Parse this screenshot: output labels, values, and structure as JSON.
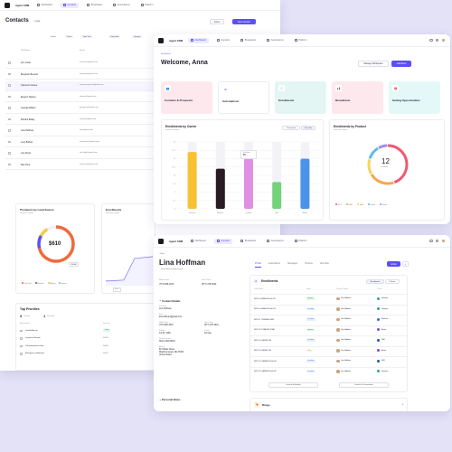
{
  "contacts_window": {
    "brand": "Agent CRM",
    "nav": [
      "Dashboard",
      "Contacts",
      "Broadcasts",
      "Automations",
      "Platform"
    ],
    "title": "Contacts",
    "count": "2,184",
    "action_button": "Action",
    "new_button": "New Contact",
    "filters": [
      "Status",
      "Texas",
      "New York",
      "Contacted",
      "Georgia",
      "Active"
    ],
    "columns": [
      "Full Name",
      "Email"
    ],
    "rows": [
      {
        "name": "Ann Lazar",
        "email": "ann.lazar@gmail.com"
      },
      {
        "name": "Benjamin Bennett",
        "email": "benjamin@gmail.com"
      },
      {
        "name": "Cameron Graves",
        "email": "cameron.graves@gmail.com"
      },
      {
        "name": "Eleanor Harries",
        "email": "eleanor@gmail.com"
      },
      {
        "name": "Georgia Walton",
        "email": "georgia.w@gmail.com"
      },
      {
        "name": "Richard Bailey",
        "email": "r.bailey@gmail.com"
      },
      {
        "name": "Lina Hoffman",
        "email": "lina@gmail.com"
      },
      {
        "name": "Lucy Bishop",
        "email": "lucy.bishop@gmail.com"
      },
      {
        "name": "Luis Floyd",
        "email": "luis.floyd@gmail.com"
      },
      {
        "name": "Max Hunt",
        "email": "max.hunt@gmail.com"
      }
    ],
    "premiums": {
      "title": "Premiums by Lead Source",
      "subtitle": "Real-time update",
      "value": "$610",
      "tooltip": "$1,000",
      "legend": [
        "Cold Calls",
        "Referrals",
        "Website",
        "Events"
      ]
    },
    "enrollments_mini": {
      "title": "Enrollments",
      "subtitle": "Real-time update",
      "x_label": "Sep 1"
    },
    "priorities": {
      "title": "Top Priorities",
      "stats": [
        {
          "value": "3",
          "label": "Overdue"
        },
        {
          "value": "1",
          "label": "Due today"
        }
      ],
      "columns": [
        "Activity Name",
        "Due Date"
      ],
      "rows": [
        {
          "name": "Lead follow-up",
          "badge": "Today",
          "date": ""
        },
        {
          "name": "Insurance Review",
          "badge": "",
          "date": "Jul 18"
        },
        {
          "name": "Call prospective client",
          "badge": "",
          "date": "Jul 18"
        },
        {
          "name": "Emergency notification",
          "badge": "",
          "date": "Jul 19"
        }
      ]
    }
  },
  "dashboard_window": {
    "brand": "Agent CRM",
    "nav": [
      "Dashboard",
      "Contacts",
      "Broadcasts",
      "Automations",
      "Platform"
    ],
    "breadcrumb": "Dashboard",
    "greeting": "Welcome, Anna",
    "manage_button": "Manage Workspace",
    "add_button": "Add Block",
    "tiles": [
      {
        "label": "Contacts & Prospects",
        "icon": "👥",
        "color": "#fde8ee",
        "icon_color": "#e85a7a"
      },
      {
        "label": "Automations",
        "icon": "⚙",
        "color": "#ffffff",
        "icon_color": "#5b4ff5"
      },
      {
        "label": "Enrollments",
        "icon": "📄",
        "color": "#e4f6f3",
        "icon_color": "#2aa889"
      },
      {
        "label": "Broadcasts",
        "icon": "📢",
        "color": "#fde8ee",
        "icon_color": "#e85a7a"
      },
      {
        "label": "Setting Opportunities",
        "icon": "🎯",
        "color": "#e4f8f8",
        "icon_color": "#2ab5b5"
      }
    ],
    "carrier_card": {
      "title": "Enrollments by Carrier",
      "subtitle": "Real-time update",
      "tabs": [
        "This month",
        "This Year"
      ],
      "tooltip_label": "Enrollees",
      "tooltip_value": "15"
    },
    "product_card": {
      "title": "Enrollments by Product",
      "subtitle": "Real-time update",
      "center_value": "12",
      "center_label": "products",
      "legend": [
        "PPO",
        "HMO",
        "HSA",
        "Dental",
        "Vision"
      ]
    }
  },
  "chart_data": [
    {
      "type": "bar",
      "title": "Enrollments by Carrier",
      "categories": [
        "Humana",
        "Wellcare",
        "Centene",
        "UHC",
        "Molina"
      ],
      "values": [
        17,
        12,
        15,
        8,
        15
      ],
      "colors": [
        "#f8c131",
        "#2a1a24",
        "#e08fe3",
        "#74d27a",
        "#4a93ea"
      ],
      "ylim": [
        0,
        20
      ],
      "yticks": [
        0,
        2.5,
        5,
        7.5,
        10,
        12.5,
        15,
        17.5,
        20
      ],
      "grid": true
    },
    {
      "type": "pie",
      "title": "Enrollments by Product",
      "labels": [
        "PPO",
        "HMO",
        "HSA",
        "Dental",
        "Vision"
      ],
      "values": [
        45,
        22,
        13,
        12,
        8
      ],
      "colors": [
        "#ef5a72",
        "#f7a64e",
        "#f7d35a",
        "#5fb8f0",
        "#9b8cf0"
      ]
    }
  ],
  "contact_window": {
    "brand": "Agent CRM",
    "nav": [
      "Dashboard",
      "Contacts",
      "Broadcasts",
      "Automations",
      "Platform"
    ],
    "back": "Back",
    "name": "Lina Hoffman",
    "email": "lina.hoffman@gmail.com",
    "mobile_label": "Mobile Phone",
    "mobile": "(773) 966-3070",
    "home_label": "Home Phone",
    "home": "(877) 378-3644",
    "section_details": "Contact Details",
    "fields": [
      {
        "label": "Full Name",
        "value": "Lina Hoffman"
      },
      {
        "label": "Email",
        "value": "lina.hoffman@gmail.com"
      },
      {
        "label": "Mobile Phone",
        "value": "(773) 966-3070"
      },
      {
        "label": "Home Phone",
        "value": "(877) 378-3644"
      },
      {
        "label": "Birthday",
        "value": "Jul 30, 1966"
      },
      {
        "label": "Gender",
        "value": "Female"
      },
      {
        "label": "Medicare Number",
        "value": "1EG4-TE5-MK64"
      },
      {
        "label": "Address",
        "value": "517 Battle Street\nWashburnough, NE 37480\nUnited States"
      }
    ],
    "section_notes": "Personal Notes",
    "tabs": [
      "Profile",
      "Automations",
      "Messages",
      "Timeline",
      "Add Note"
    ],
    "action_button": "Action",
    "enrollments_title": "Enrollments",
    "enrollments_count": "8",
    "enrollments_tabs": [
      "Enrollments",
      "Policies"
    ],
    "columns": [
      "Policy Name",
      "Stage",
      "Primary Contact",
      "Carrier"
    ],
    "rows": [
      {
        "policy": "2022-6 • HM40054 Profit XX",
        "stage": "Applied",
        "contact": "Lina Hoffman",
        "carrier": "Humana"
      },
      {
        "policy": "2022-6 • HM40054 Profit XX",
        "stage": "Enrolled",
        "contact": "Lina Hoffman",
        "carrier": "Humana"
      },
      {
        "policy": "2022-6 • 17-HM0005 GBX",
        "stage": "Enrolled",
        "contact": "Lina Hoffman",
        "carrier": "Wellcare"
      },
      {
        "policy": "2022-12 17-HM5045 VITAL",
        "stage": "Applied",
        "contact": "Lina Hoffman",
        "carrier": "Aetna"
      },
      {
        "policy": "2022-11 • HN0097 GB",
        "stage": "Enrolled",
        "contact": "Lina Hoffman",
        "carrier": "UHC"
      },
      {
        "policy": "2022-11 • HN0097 GB",
        "stage": "Plan",
        "contact": "Lina Hoffman",
        "carrier": "Aetna"
      },
      {
        "policy": "2022-11 • HM40054 Profit XX",
        "stage": "Enrolled",
        "contact": "Lina Hoffman",
        "carrier": "UHC"
      },
      {
        "policy": "2022-11 • HM40054 Profit XX",
        "stage": "Enrolled",
        "contact": "Lina Hoffman",
        "carrier": "Humana"
      }
    ],
    "launch_backlist": "Launch in Backlist",
    "launch_connections": "Launch in Connections",
    "drugs_title": "Drugs"
  }
}
